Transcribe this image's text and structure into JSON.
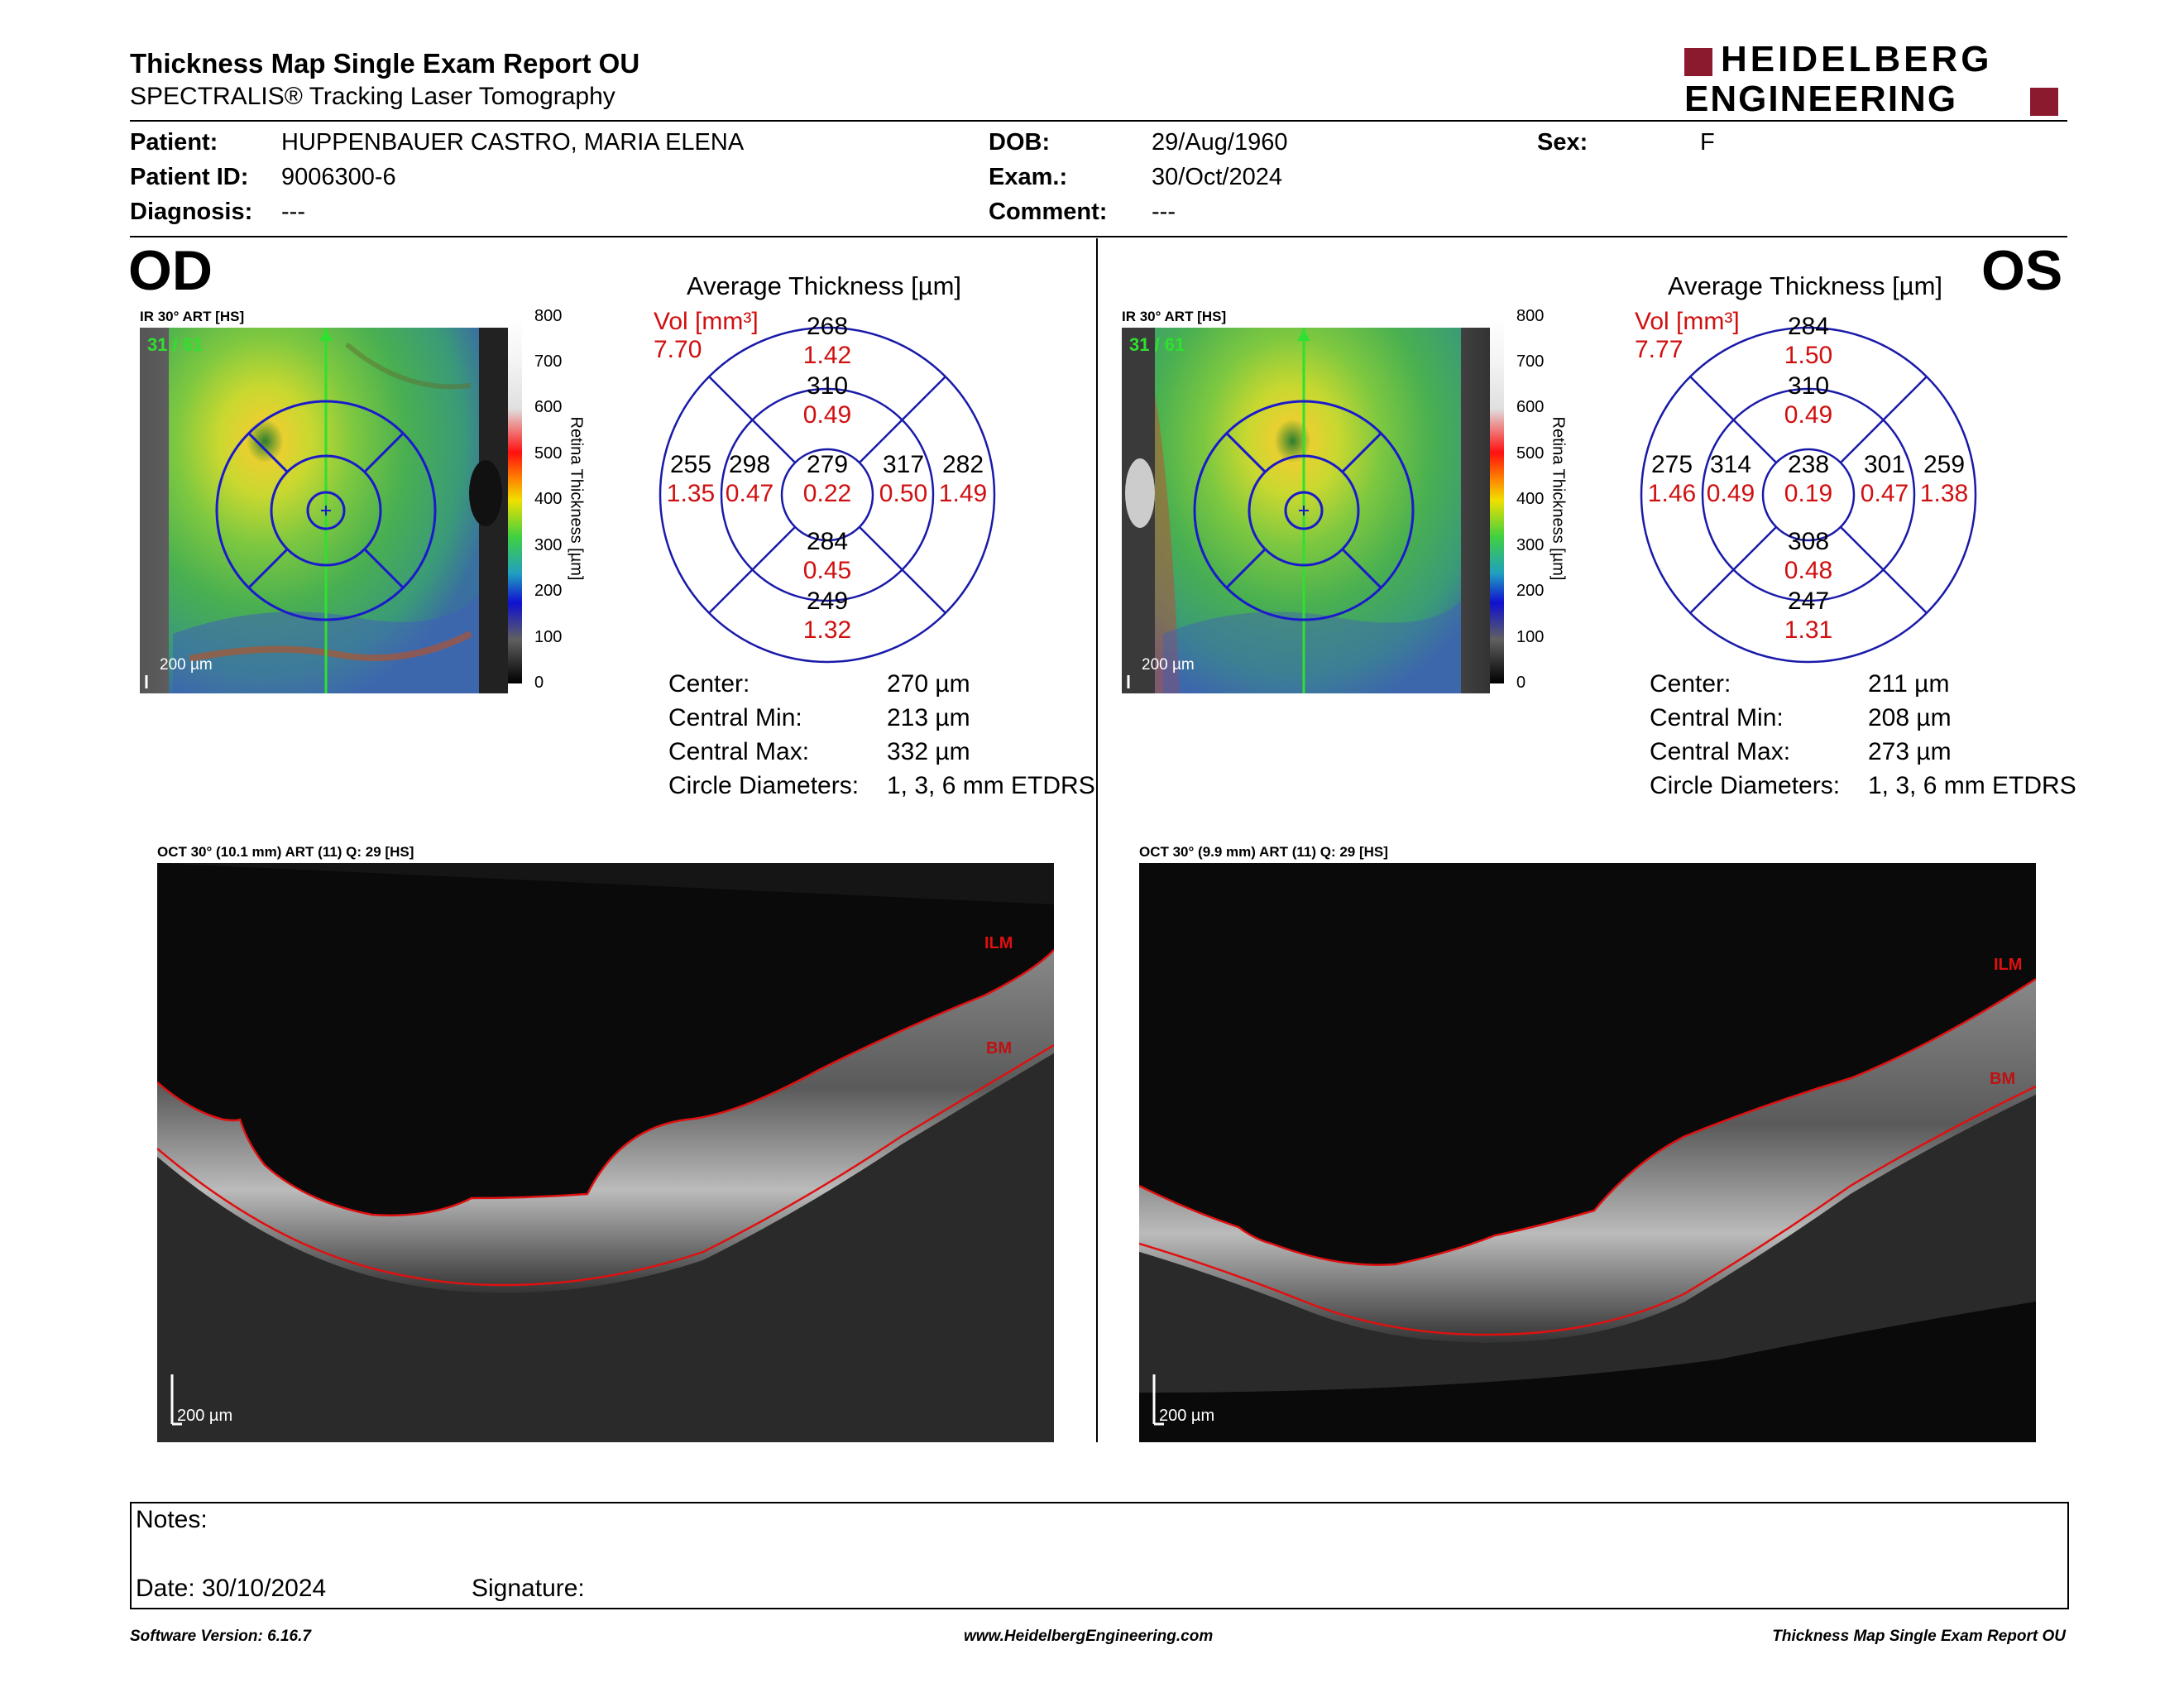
{
  "header": {
    "title": "Thickness Map Single Exam Report OU",
    "subtitle": "SPECTRALIS® Tracking Laser Tomography",
    "brand_line1": "HEIDELBERG",
    "brand_line2": "ENGINEERING",
    "brand_color": "#8b1a2e"
  },
  "patient": {
    "patient_label": "Patient:",
    "patient_name": "HUPPENBAUER CASTRO, MARIA ELENA",
    "id_label": "Patient ID:",
    "id_value": "9006300-6",
    "diagnosis_label": "Diagnosis:",
    "diagnosis_value": "---",
    "dob_label": "DOB:",
    "dob_value": "29/Aug/1960",
    "exam_label": "Exam.:",
    "exam_value": "30/Oct/2024",
    "comment_label": "Comment:",
    "comment_value": "---",
    "sex_label": "Sex:",
    "sex_value": "F"
  },
  "od": {
    "eye": "OD",
    "fundus_label": "IR 30° ART [HS]",
    "slice": "31 / 61",
    "fundus_scale": "200 µm",
    "avg_title": "Average Thickness [µm]",
    "vol_label": "Vol [mm³]",
    "vol_total": "7.70",
    "etdrs": {
      "center": [
        "279",
        "0.22"
      ],
      "inner_sup": [
        "310",
        "0.49"
      ],
      "inner_inf": [
        "284",
        "0.45"
      ],
      "inner_temp": [
        "298",
        "0.47"
      ],
      "inner_nasal": [
        "317",
        "0.50"
      ],
      "outer_sup": [
        "268",
        "1.42"
      ],
      "outer_inf": [
        "249",
        "1.32"
      ],
      "outer_temp": [
        "255",
        "1.35"
      ],
      "outer_nasal": [
        "282",
        "1.49"
      ]
    },
    "stats": [
      {
        "label": "Center:",
        "value": "270 µm"
      },
      {
        "label": "Central Min:",
        "value": "213 µm"
      },
      {
        "label": "Central Max:",
        "value": "332 µm"
      },
      {
        "label": "Circle Diameters:",
        "value": "1, 3, 6 mm ETDRS"
      }
    ],
    "oct_label": "OCT 30° (10.1 mm) ART (11) Q: 29 [HS]",
    "oct_scale": "200 µm",
    "ilm": "ILM",
    "bm": "BM"
  },
  "os": {
    "eye": "OS",
    "fundus_label": "IR 30° ART [HS]",
    "slice": "31 / 61",
    "fundus_scale": "200 µm",
    "avg_title": "Average Thickness [µm]",
    "vol_label": "Vol [mm³]",
    "vol_total": "7.77",
    "etdrs": {
      "center": [
        "238",
        "0.19"
      ],
      "inner_sup": [
        "310",
        "0.49"
      ],
      "inner_inf": [
        "308",
        "0.48"
      ],
      "inner_temp": [
        "314",
        "0.49"
      ],
      "inner_nasal": [
        "301",
        "0.47"
      ],
      "outer_sup": [
        "284",
        "1.50"
      ],
      "outer_inf": [
        "247",
        "1.31"
      ],
      "outer_temp": [
        "275",
        "1.46"
      ],
      "outer_nasal": [
        "259",
        "1.38"
      ]
    },
    "stats": [
      {
        "label": "Center:",
        "value": "211 µm"
      },
      {
        "label": "Central Min:",
        "value": "208 µm"
      },
      {
        "label": "Central Max:",
        "value": "273 µm"
      },
      {
        "label": "Circle Diameters:",
        "value": "1, 3, 6 mm ETDRS"
      }
    ],
    "oct_label": "OCT 30° (9.9 mm) ART (11) Q: 29 [HS]",
    "oct_scale": "200 µm",
    "ilm": "ILM",
    "bm": "BM"
  },
  "color_scale": {
    "ticks": [
      "800",
      "700",
      "600",
      "500",
      "400",
      "300",
      "200",
      "100",
      "0"
    ],
    "title": "Retina Thickness [µm]"
  },
  "notes": {
    "notes_label": "Notes:",
    "date_label": "Date: 30/10/2024",
    "signature_label": "Signature:"
  },
  "footer": {
    "software": "Software Version: 6.16.7",
    "website": "www.HeidelbergEngineering.com",
    "report": "Thickness Map Single Exam Report OU"
  }
}
